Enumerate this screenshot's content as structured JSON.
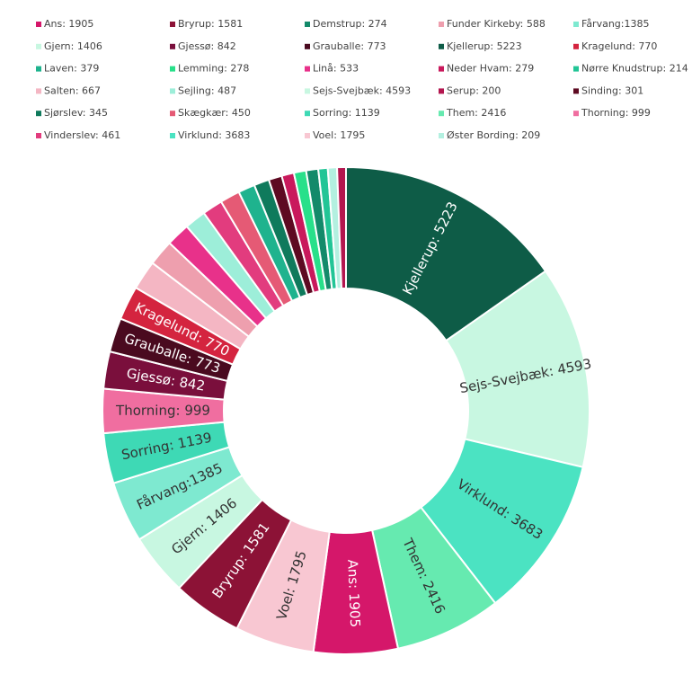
{
  "chart_data": {
    "type": "pie",
    "title": "",
    "donut": true,
    "legend_position": "top",
    "slices": [
      {
        "name": "Kjellerup",
        "value": 5223,
        "color": "#0e5c47",
        "legend_text": "Kjellerup: 5223",
        "label_text": "Kjellerup: 5223"
      },
      {
        "name": "Sejs-Svejbæk",
        "value": 4593,
        "color": "#c8f7e1",
        "legend_text": "Sejs-Svejbæk: 4593",
        "label_text": "Sejs-Svejbæk: 4593"
      },
      {
        "name": "Virklund",
        "value": 3683,
        "color": "#4be3c2",
        "legend_text": "Virklund: 3683",
        "label_text": "Virklund: 3683"
      },
      {
        "name": "Them",
        "value": 2416,
        "color": "#66eab0",
        "legend_text": "Them: 2416",
        "label_text": "Them: 2416"
      },
      {
        "name": "Ans",
        "value": 1905,
        "color": "#d5176a",
        "legend_text": "Ans: 1905",
        "label_text": "Ans: 1905"
      },
      {
        "name": "Voel",
        "value": 1795,
        "color": "#f8c7d2",
        "legend_text": "Voel: 1795",
        "label_text": "Voel: 1795"
      },
      {
        "name": "Bryrup",
        "value": 1581,
        "color": "#8c1236",
        "legend_text": "Bryrup: 1581",
        "label_text": "Bryrup: 1581"
      },
      {
        "name": "Gjern",
        "value": 1406,
        "color": "#c8f7e1",
        "legend_text": "Gjern: 1406",
        "label_text": "Gjern: 1406"
      },
      {
        "name": "Fårvang",
        "value": 1385,
        "color": "#7ee9d0",
        "legend_text": "Fårvang:1385",
        "label_text": "Fårvang:1385"
      },
      {
        "name": "Sorring",
        "value": 1139,
        "color": "#3ed9b5",
        "legend_text": "Sorring: 1139",
        "label_text": "Sorring: 1139"
      },
      {
        "name": "Thorning",
        "value": 999,
        "color": "#f06ea0",
        "legend_text": "Thorning: 999",
        "label_text": "Thorning: 999"
      },
      {
        "name": "Gjessø",
        "value": 842,
        "color": "#7a0f3c",
        "legend_text": "Gjessø: 842",
        "label_text": "Gjessø: 842"
      },
      {
        "name": "Grauballe",
        "value": 773,
        "color": "#4a0a1f",
        "legend_text": "Grauballe: 773",
        "label_text": "Grauballe: 773"
      },
      {
        "name": "Kragelund",
        "value": 770,
        "color": "#d4243f",
        "legend_text": "Kragelund: 770",
        "label_text": "Kragelund: 770"
      },
      {
        "name": "Salten",
        "value": 667,
        "color": "#f4b6c3",
        "legend_text": "Salten: 667",
        "label_text": ""
      },
      {
        "name": "Funder Kirkeby",
        "value": 588,
        "color": "#ee9fae",
        "legend_text": "Funder Kirkeby: 588",
        "label_text": ""
      },
      {
        "name": "Linå",
        "value": 533,
        "color": "#e8318a",
        "legend_text": "Linå: 533",
        "label_text": ""
      },
      {
        "name": "Sejling",
        "value": 487,
        "color": "#9deed9",
        "legend_text": "Sejling: 487",
        "label_text": ""
      },
      {
        "name": "Vinderslev",
        "value": 461,
        "color": "#e23c7e",
        "legend_text": "Vinderslev: 461",
        "label_text": ""
      },
      {
        "name": "Skægkær",
        "value": 450,
        "color": "#e55a75",
        "legend_text": "Skægkær: 450",
        "label_text": ""
      },
      {
        "name": "Laven",
        "value": 379,
        "color": "#1fb38e",
        "legend_text": "Laven: 379",
        "label_text": ""
      },
      {
        "name": "Sjørslev",
        "value": 345,
        "color": "#0f7a5c",
        "legend_text": "Sjørslev: 345",
        "label_text": ""
      },
      {
        "name": "Sinding",
        "value": 301,
        "color": "#5e0a22",
        "legend_text": "Sinding: 301",
        "label_text": ""
      },
      {
        "name": "Neder Hvam",
        "value": 279,
        "color": "#c9195c",
        "legend_text": "Neder Hvam: 279",
        "label_text": ""
      },
      {
        "name": "Lemming",
        "value": 278,
        "color": "#28e08a",
        "legend_text": "Lemming: 278",
        "label_text": ""
      },
      {
        "name": "Demstrup",
        "value": 274,
        "color": "#138a6a",
        "legend_text": "Demstrup: 274",
        "label_text": ""
      },
      {
        "name": "Nørre Knudstrup",
        "value": 214,
        "color": "#22c596",
        "legend_text": "Nørre Knudstrup: 214",
        "label_text": ""
      },
      {
        "name": "Øster Bording",
        "value": 209,
        "color": "#b3f0e0",
        "legend_text": "Øster Bording: 209",
        "label_text": ""
      },
      {
        "name": "Serup",
        "value": 200,
        "color": "#b3164f",
        "legend_text": "Serup: 200",
        "label_text": ""
      }
    ],
    "legend_order": [
      "Ans",
      "Bryrup",
      "Demstrup",
      "Funder Kirkeby",
      "Fårvang",
      "Gjern",
      "Gjessø",
      "Grauballe",
      "Kjellerup",
      "Kragelund",
      "Laven",
      "Lemming",
      "Linå",
      "Neder Hvam",
      "Nørre Knudstrup",
      "Salten",
      "Sejling",
      "Sejs-Svejbæk",
      "Serup",
      "Sinding",
      "Sjørslev",
      "Skægkær",
      "Sorring",
      "Them",
      "Thorning",
      "Vinderslev",
      "Virklund",
      "Voel",
      "Øster Bording"
    ]
  }
}
